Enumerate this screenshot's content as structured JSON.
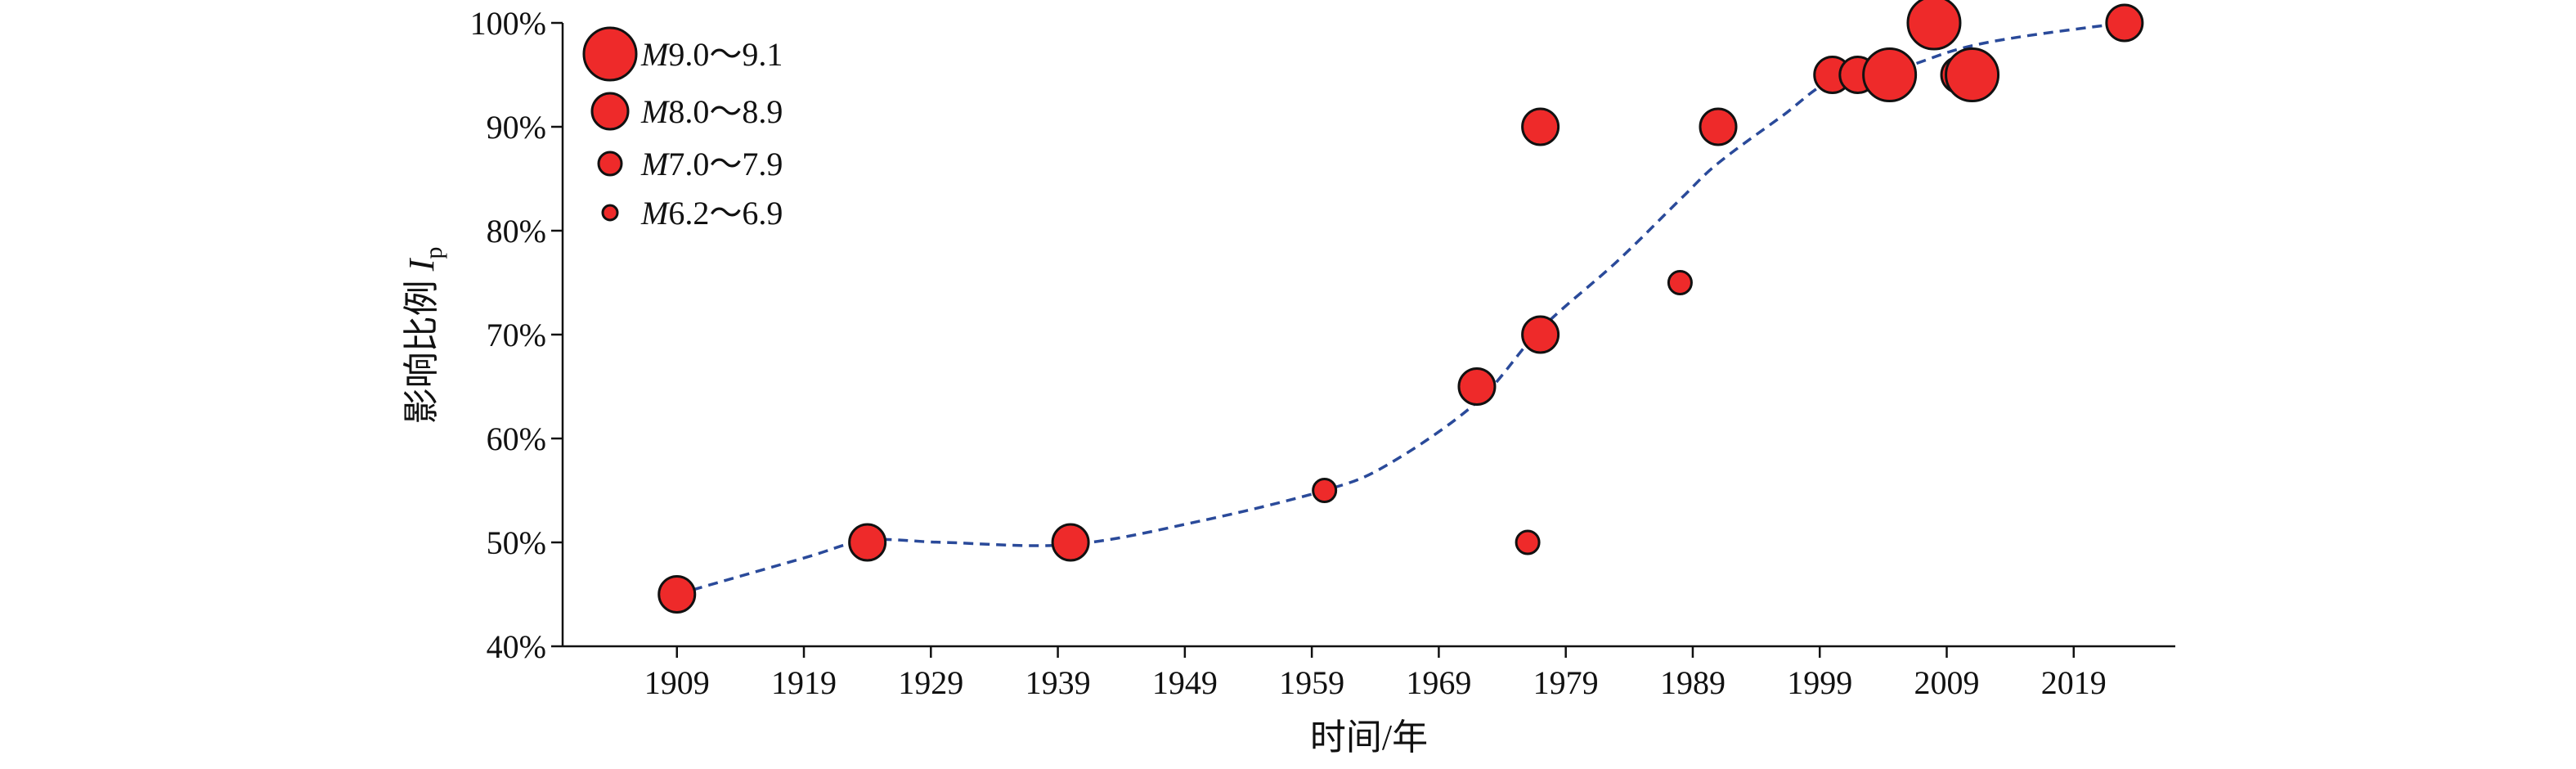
{
  "chart_data": {
    "type": "scatter",
    "xlabel": "时间/年",
    "ylabel": "影响比例 ",
    "ylabel_symbol": "I",
    "ylabel_subscript": "p",
    "xlim": [
      1900,
      2027
    ],
    "ylim": [
      40,
      100
    ],
    "x_ticks": [
      1909,
      1919,
      1929,
      1939,
      1949,
      1959,
      1969,
      1979,
      1989,
      1999,
      2009,
      2019
    ],
    "y_ticks": [
      40,
      50,
      60,
      70,
      80,
      90,
      100
    ],
    "y_tick_labels": [
      "40%",
      "50%",
      "60%",
      "70%",
      "80%",
      "90%",
      "100%"
    ],
    "legend": {
      "placement": "top-left",
      "entries": [
        {
          "symbol": "M",
          "text": "9.0～9.1",
          "size_class": 4
        },
        {
          "symbol": "M",
          "text": "8.0～8.9",
          "size_class": 3
        },
        {
          "symbol": "M",
          "text": "7.0～7.9",
          "size_class": 2
        },
        {
          "symbol": "M",
          "text": "6.2～6.9",
          "size_class": 1
        }
      ]
    },
    "points": [
      {
        "x": 1909,
        "y": 45,
        "size_class": 3
      },
      {
        "x": 1924,
        "y": 50,
        "size_class": 3
      },
      {
        "x": 1940,
        "y": 50,
        "size_class": 3
      },
      {
        "x": 1960,
        "y": 55,
        "size_class": 2
      },
      {
        "x": 1972,
        "y": 65,
        "size_class": 3
      },
      {
        "x": 1976,
        "y": 50,
        "size_class": 2
      },
      {
        "x": 1977,
        "y": 90,
        "size_class": 3
      },
      {
        "x": 1977,
        "y": 70,
        "size_class": 3
      },
      {
        "x": 1988,
        "y": 75,
        "size_class": 2
      },
      {
        "x": 1991,
        "y": 90,
        "size_class": 3
      },
      {
        "x": 2000,
        "y": 95,
        "size_class": 3
      },
      {
        "x": 2002,
        "y": 95,
        "size_class": 3
      },
      {
        "x": 2004.5,
        "y": 95,
        "size_class": 4
      },
      {
        "x": 2008,
        "y": 100,
        "size_class": 4
      },
      {
        "x": 2010,
        "y": 95,
        "size_class": 3
      },
      {
        "x": 2011,
        "y": 95,
        "size_class": 4
      },
      {
        "x": 2023,
        "y": 100,
        "size_class": 3
      }
    ],
    "trend_line": {
      "style": "dashed",
      "x": [
        1909,
        1919,
        1924,
        1930,
        1940,
        1950,
        1960,
        1965,
        1972,
        1977,
        1983,
        1988,
        1991,
        1996,
        2000,
        2005,
        2010,
        2015,
        2023
      ],
      "y": [
        45,
        48.5,
        50.2,
        50,
        49.8,
        52,
        55,
        57.5,
        63.5,
        70.5,
        77,
        83,
        86.5,
        91,
        94.5,
        95.5,
        97.5,
        98.7,
        100
      ]
    },
    "colors": {
      "marker_fill": "#ee2a2a",
      "marker_edge": "#111111",
      "trend": "#2a4a9a"
    }
  }
}
